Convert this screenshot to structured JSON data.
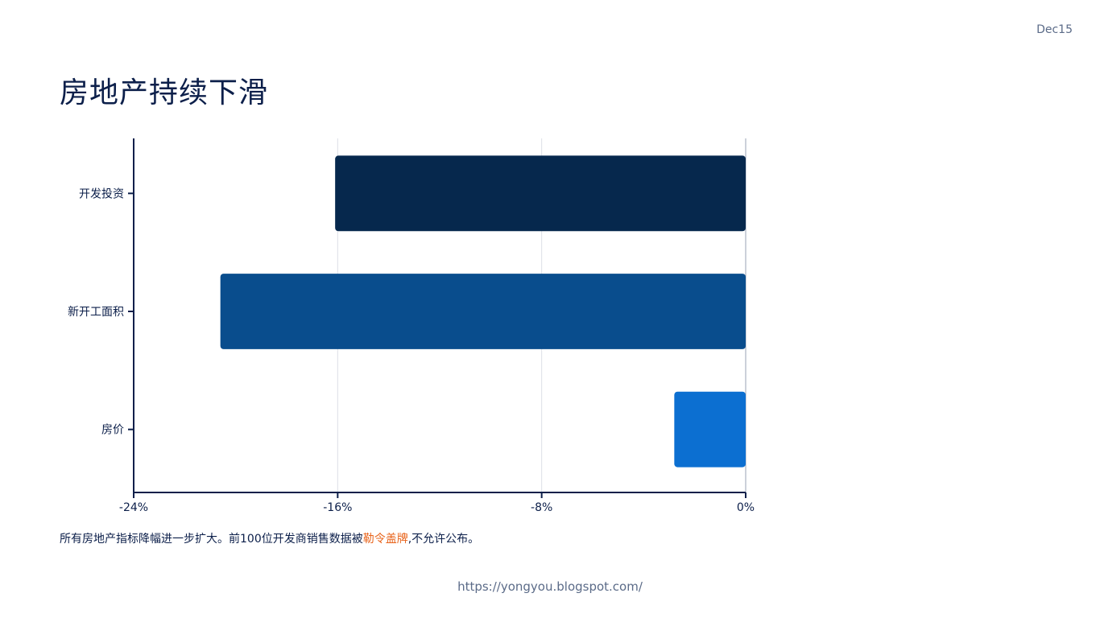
{
  "header": {
    "date": "Dec15",
    "title": "房地产持续下滑"
  },
  "caption": {
    "before": "所有房地产指标降幅进一步扩大。前100位开发商销售数据被",
    "highlight": "勒令盖牌",
    "after": ",不允许公布。",
    "highlight_color": "#e8631a"
  },
  "footer": {
    "url": "https://yongyou.blogspot.com/"
  },
  "chart_data": {
    "type": "bar",
    "orientation": "horizontal",
    "categories": [
      "开发投资",
      "新开工面积",
      "房价"
    ],
    "values": [
      -16.1,
      -20.6,
      -2.8
    ],
    "colors": [
      "#06284d",
      "#094d8d",
      "#0c6fd1"
    ],
    "xlim": [
      -24,
      0
    ],
    "xticks": [
      -24,
      -16,
      -8,
      0
    ],
    "xtick_labels": [
      "-24%",
      "-16%",
      "-8%",
      "0%"
    ],
    "grid": "vertical",
    "title": "",
    "xlabel": "",
    "ylabel": ""
  }
}
